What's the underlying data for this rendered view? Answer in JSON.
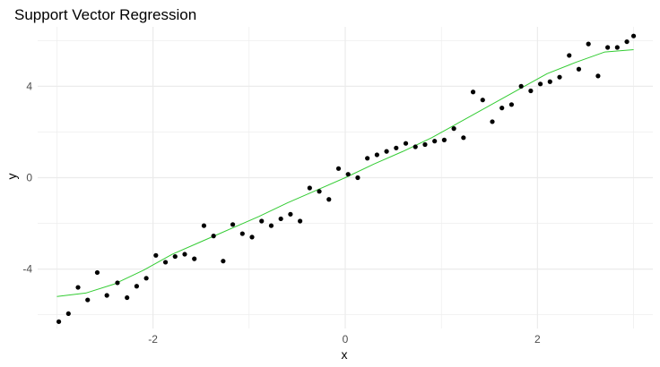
{
  "chart_data": {
    "type": "scatter",
    "title": "Support Vector Regression",
    "xlabel": "x",
    "ylabel": "y",
    "xlim": [
      -3.2,
      3.2
    ],
    "ylim": [
      -6.6,
      6.6
    ],
    "grid": true,
    "x_ticks": [
      -2,
      0,
      2
    ],
    "x_tick_labels": [
      "-2",
      "0",
      "2"
    ],
    "y_ticks": [
      -4,
      0,
      4
    ],
    "y_tick_labels": [
      "-4",
      "0",
      "4"
    ],
    "colors": {
      "points": "#000000",
      "fit_line": "#33cc33",
      "grid": "#ebebeb"
    },
    "series": [
      {
        "type": "scatter",
        "x": [
          -2.98,
          -2.88,
          -2.78,
          -2.68,
          -2.58,
          -2.48,
          -2.37,
          -2.27,
          -2.17,
          -2.07,
          -1.97,
          -1.87,
          -1.77,
          -1.67,
          -1.57,
          -1.47,
          -1.37,
          -1.27,
          -1.17,
          -1.07,
          -0.97,
          -0.87,
          -0.77,
          -0.67,
          -0.57,
          -0.47,
          -0.37,
          -0.27,
          -0.17,
          -0.07,
          0.03,
          0.13,
          0.23,
          0.33,
          0.43,
          0.53,
          0.63,
          0.73,
          0.83,
          0.93,
          1.03,
          1.13,
          1.23,
          1.33,
          1.43,
          1.53,
          1.63,
          1.73,
          1.83,
          1.93,
          2.03,
          2.13,
          2.23,
          2.33,
          2.43,
          2.53,
          2.63,
          2.73,
          2.83,
          2.93,
          3.0
        ],
        "y": [
          -6.3,
          -5.95,
          -4.8,
          -5.35,
          -4.15,
          -5.15,
          -4.6,
          -5.25,
          -4.75,
          -4.4,
          -3.4,
          -3.7,
          -3.45,
          -3.35,
          -3.55,
          -2.1,
          -2.55,
          -3.65,
          -2.05,
          -2.45,
          -2.6,
          -1.9,
          -2.1,
          -1.8,
          -1.6,
          -1.9,
          -0.45,
          -0.6,
          -0.95,
          0.4,
          0.15,
          0.0,
          0.85,
          1.0,
          1.15,
          1.3,
          1.5,
          1.35,
          1.45,
          1.6,
          1.65,
          2.15,
          1.75,
          3.75,
          3.4,
          2.45,
          3.05,
          3.2,
          4.0,
          3.8,
          4.1,
          4.2,
          4.4,
          5.35,
          4.75,
          5.85,
          4.45,
          5.7,
          5.7,
          5.95,
          6.2
        ]
      },
      {
        "type": "line",
        "x": [
          -3.0,
          -2.7,
          -2.4,
          -2.1,
          -1.8,
          -1.5,
          -1.2,
          -0.9,
          -0.6,
          -0.3,
          0.0,
          0.3,
          0.6,
          0.9,
          1.2,
          1.5,
          1.8,
          2.1,
          2.4,
          2.7,
          3.0
        ],
        "y": [
          -5.2,
          -5.05,
          -4.65,
          -4.05,
          -3.35,
          -2.8,
          -2.25,
          -1.7,
          -1.1,
          -0.55,
          0.0,
          0.6,
          1.15,
          1.75,
          2.45,
          3.15,
          3.85,
          4.55,
          5.05,
          5.5,
          5.6
        ]
      }
    ]
  }
}
